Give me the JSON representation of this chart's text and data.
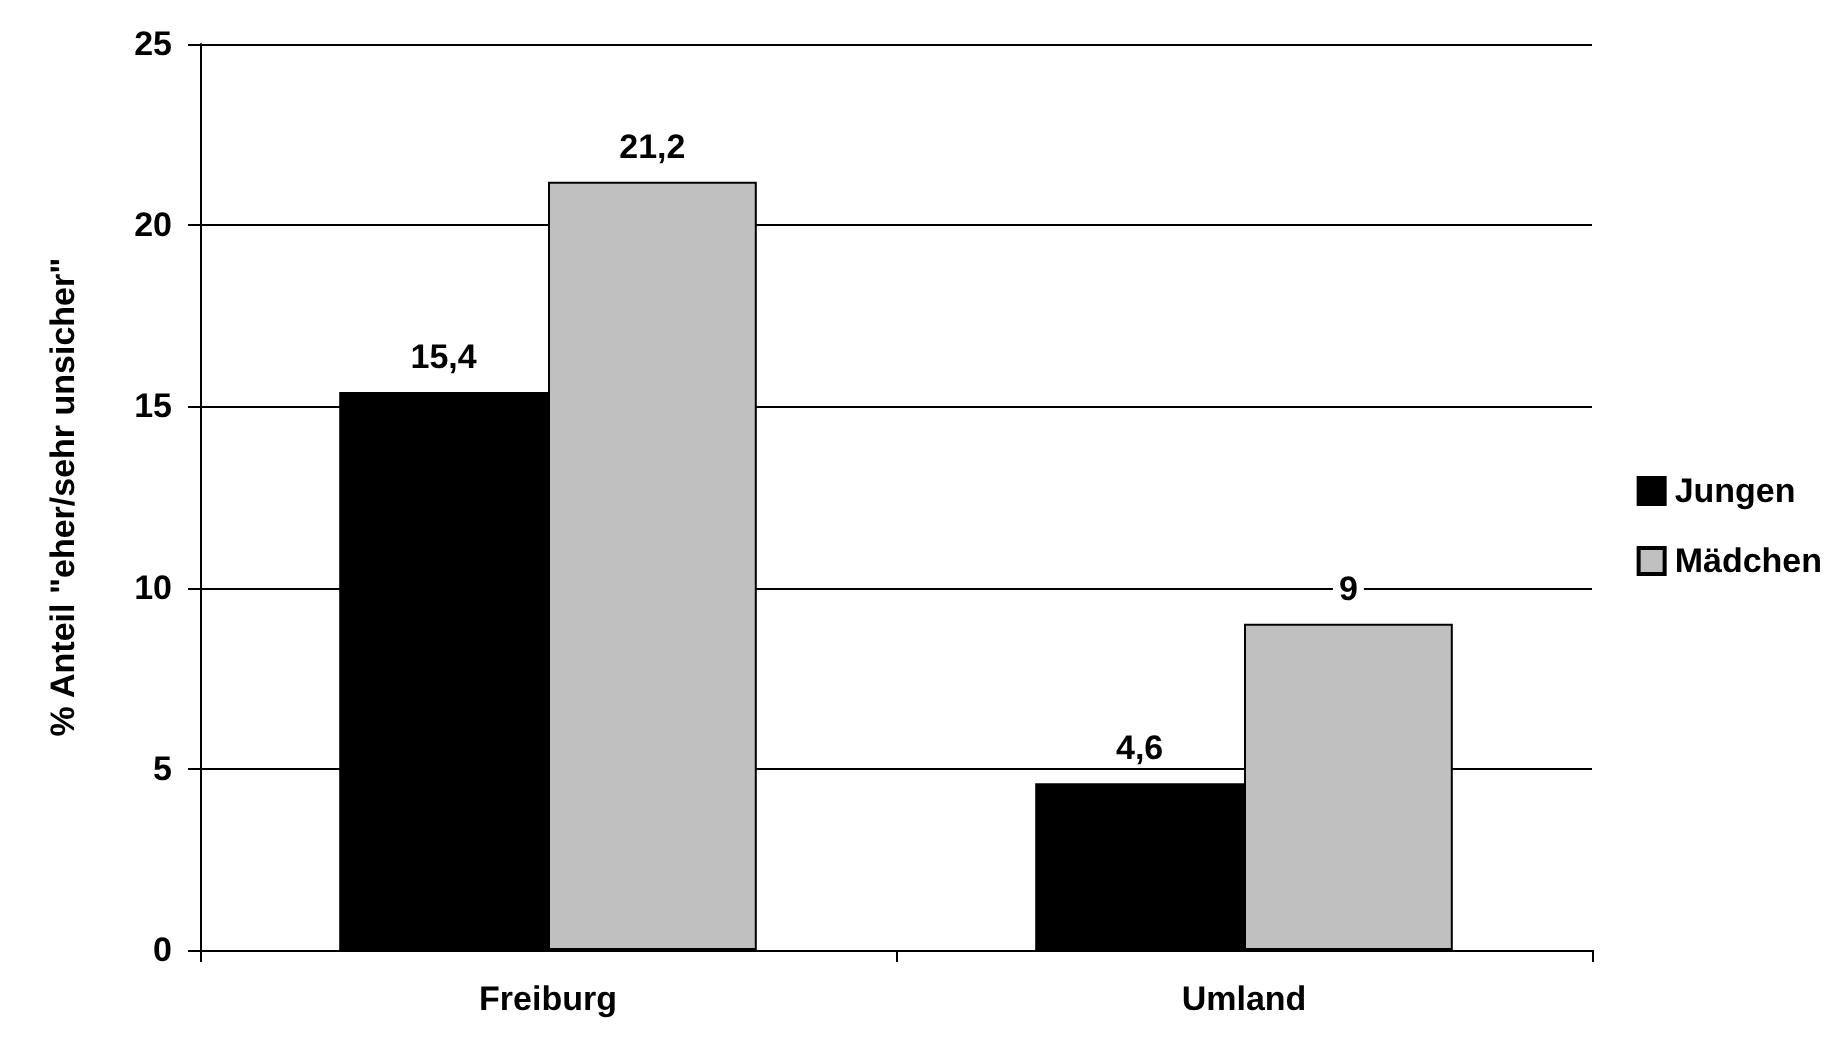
{
  "chart_data": {
    "type": "bar",
    "ylabel": "% Anteil \"eher/sehr unsicher\"",
    "categories": [
      "Freiburg",
      "Umland"
    ],
    "series": [
      {
        "name": "Jungen",
        "color": "#000000",
        "values": [
          15.4,
          4.6
        ],
        "value_labels": [
          "15,4",
          "4,6"
        ]
      },
      {
        "name": "Mädchen",
        "color": "#c0c0c0",
        "values": [
          21.2,
          9
        ],
        "value_labels": [
          "21,2",
          "9"
        ]
      }
    ],
    "ylim": [
      0,
      25
    ],
    "yticks": [
      0,
      5,
      10,
      15,
      20,
      25
    ],
    "grid": "y",
    "legend": "right"
  }
}
